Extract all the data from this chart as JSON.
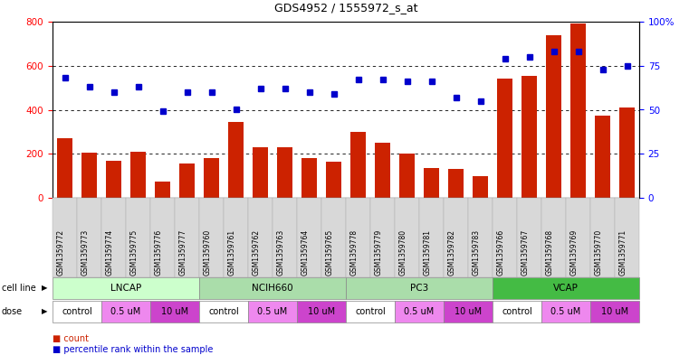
{
  "title": "GDS4952 / 1555972_s_at",
  "samples": [
    "GSM1359772",
    "GSM1359773",
    "GSM1359774",
    "GSM1359775",
    "GSM1359776",
    "GSM1359777",
    "GSM1359760",
    "GSM1359761",
    "GSM1359762",
    "GSM1359763",
    "GSM1359764",
    "GSM1359765",
    "GSM1359778",
    "GSM1359779",
    "GSM1359780",
    "GSM1359781",
    "GSM1359782",
    "GSM1359783",
    "GSM1359766",
    "GSM1359767",
    "GSM1359768",
    "GSM1359769",
    "GSM1359770",
    "GSM1359771"
  ],
  "counts": [
    270,
    205,
    170,
    210,
    75,
    155,
    180,
    345,
    230,
    230,
    180,
    165,
    300,
    250,
    200,
    135,
    130,
    100,
    540,
    555,
    740,
    790,
    375,
    410
  ],
  "percentiles": [
    68,
    63,
    60,
    63,
    49,
    60,
    60,
    50,
    62,
    62,
    60,
    59,
    67,
    67,
    66,
    66,
    57,
    55,
    79,
    80,
    83,
    83,
    73,
    75
  ],
  "cell_line_groups": [
    {
      "name": "LNCAP",
      "start": 0,
      "end": 6,
      "color": "#ccffcc"
    },
    {
      "name": "NCIH660",
      "start": 6,
      "end": 12,
      "color": "#aaddaa"
    },
    {
      "name": "PC3",
      "start": 12,
      "end": 18,
      "color": "#aaddaa"
    },
    {
      "name": "VCAP",
      "start": 18,
      "end": 24,
      "color": "#44bb44"
    }
  ],
  "dose_groups": [
    {
      "label": "control",
      "start": 0,
      "end": 2,
      "color": "#ffffff"
    },
    {
      "label": "0.5 uM",
      "start": 2,
      "end": 4,
      "color": "#ee88ee"
    },
    {
      "label": "10 uM",
      "start": 4,
      "end": 6,
      "color": "#cc44cc"
    },
    {
      "label": "control",
      "start": 6,
      "end": 8,
      "color": "#ffffff"
    },
    {
      "label": "0.5 uM",
      "start": 8,
      "end": 10,
      "color": "#ee88ee"
    },
    {
      "label": "10 uM",
      "start": 10,
      "end": 12,
      "color": "#cc44cc"
    },
    {
      "label": "control",
      "start": 12,
      "end": 14,
      "color": "#ffffff"
    },
    {
      "label": "0.5 uM",
      "start": 14,
      "end": 16,
      "color": "#ee88ee"
    },
    {
      "label": "10 uM",
      "start": 16,
      "end": 18,
      "color": "#cc44cc"
    },
    {
      "label": "control",
      "start": 18,
      "end": 20,
      "color": "#ffffff"
    },
    {
      "label": "0.5 uM",
      "start": 20,
      "end": 22,
      "color": "#ee88ee"
    },
    {
      "label": "10 uM",
      "start": 22,
      "end": 24,
      "color": "#cc44cc"
    }
  ],
  "bar_color": "#cc2200",
  "dot_color": "#0000cc",
  "left_ylim": [
    0,
    800
  ],
  "right_ylim": [
    0,
    100
  ],
  "left_yticks": [
    0,
    200,
    400,
    600,
    800
  ],
  "right_yticks": [
    0,
    25,
    50,
    75,
    100
  ],
  "right_yticklabels": [
    "0",
    "25",
    "50",
    "75",
    "100%"
  ],
  "grid_values": [
    200,
    400,
    600
  ],
  "bg": "#ffffff",
  "gray_sample": "#d8d8d8"
}
